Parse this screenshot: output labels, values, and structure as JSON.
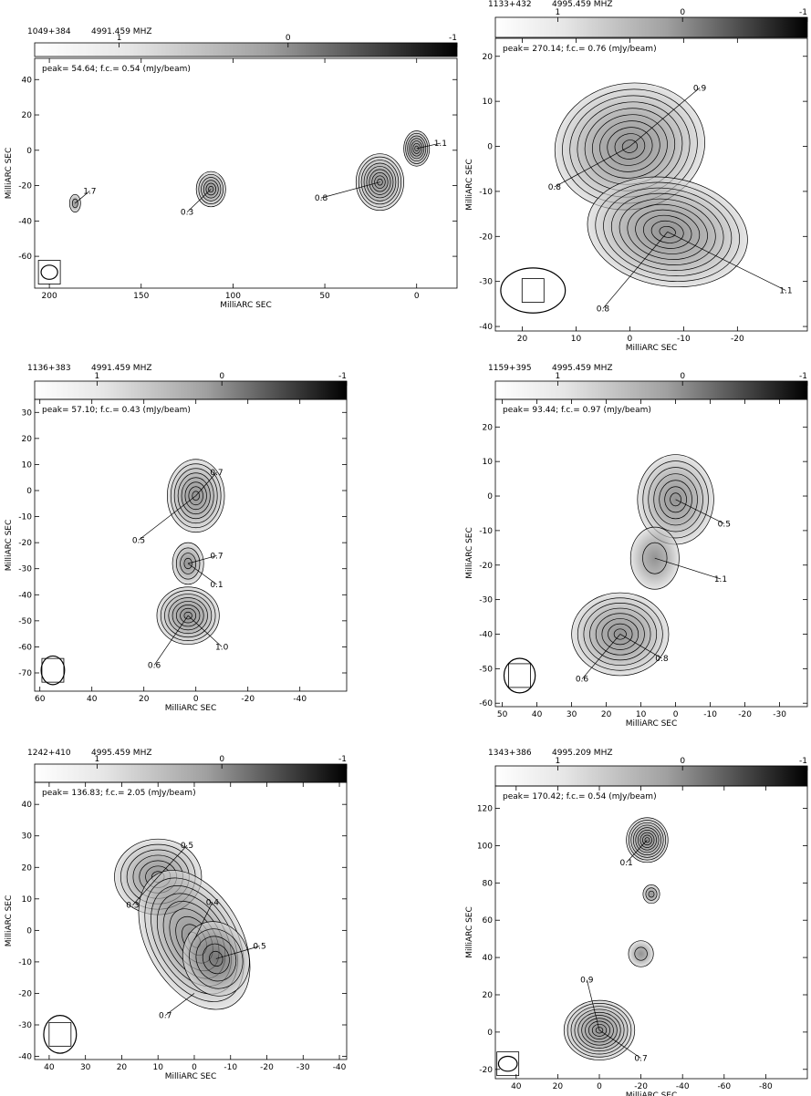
{
  "figure": {
    "colorbar_ticks": [
      "1",
      "0",
      "-1"
    ],
    "axis_label": "MilliARC SEC"
  },
  "chart_data": [
    {
      "type": "contour",
      "source": "1049+384",
      "frequency": "4991.459 MHZ",
      "info": "peak= 54.64;   f.c.= 0.54  (mJy/beam)",
      "xlabel": "MilliARC SEC",
      "ylabel": "MilliARC SEC",
      "x_ticks": [
        200,
        150,
        100,
        50,
        0
      ],
      "y_ticks": [
        40,
        20,
        0,
        -20,
        -40,
        -60
      ],
      "xlim": [
        208,
        -22
      ],
      "ylim": [
        -78,
        52
      ],
      "components": [
        {
          "x": 0,
          "y": 1,
          "rx": 7,
          "ry": 10,
          "n": 7,
          "angle": 0
        },
        {
          "x": 20,
          "y": -18,
          "rx": 13,
          "ry": 16,
          "n": 9,
          "angle": 0
        },
        {
          "x": 112,
          "y": -22,
          "rx": 8,
          "ry": 10,
          "n": 6,
          "angle": 0
        },
        {
          "x": 186,
          "y": -30,
          "rx": 3,
          "ry": 5,
          "n": 2,
          "angle": 0
        }
      ],
      "labels": [
        {
          "text": "1.1",
          "x": -13,
          "y": 4,
          "tx": 0,
          "ty": 1
        },
        {
          "text": "0.8",
          "x": 52,
          "y": -27,
          "tx": 20,
          "ty": -18
        },
        {
          "text": "0.3",
          "x": 125,
          "y": -35,
          "tx": 112,
          "ty": -22
        },
        {
          "text": "1.7",
          "x": 178,
          "y": -23,
          "tx": 186,
          "ty": -30
        }
      ],
      "beam": {
        "x": 200,
        "y": -69,
        "rx": 4.5,
        "ry": 4,
        "angle": 0
      }
    },
    {
      "type": "contour",
      "source": "1133+432",
      "frequency": "4995.459 MHZ",
      "info": "peak= 270.14;   f.c.= 0.76  (mJy/beam)",
      "xlabel": "MilliARC SEC",
      "ylabel": "MilliARC SEC",
      "x_ticks": [
        20,
        10,
        0,
        -10,
        -20
      ],
      "y_ticks": [
        20,
        10,
        0,
        -10,
        -20,
        -30,
        -40
      ],
      "xlim": [
        25,
        -33
      ],
      "ylim": [
        -41,
        24
      ],
      "components": [
        {
          "x": 0,
          "y": 0,
          "rx": 14,
          "ry": 14,
          "n": 10,
          "angle": -10
        },
        {
          "x": -7,
          "y": -19,
          "rx": 15,
          "ry": 12,
          "n": 10,
          "angle": 10
        }
      ],
      "labels": [
        {
          "text": "0.9",
          "x": -13,
          "y": 13,
          "tx": 0,
          "ty": 0
        },
        {
          "text": "0.8",
          "x": 14,
          "y": -9,
          "tx": 0,
          "ty": 0
        },
        {
          "text": "0.8",
          "x": 5,
          "y": -36,
          "tx": -7,
          "ty": -19
        },
        {
          "text": "1.1",
          "x": -29,
          "y": -32,
          "tx": -7,
          "ty": -19
        }
      ],
      "beam": {
        "x": 18,
        "y": -32,
        "rx": 6,
        "ry": 5,
        "angle": 0
      }
    },
    {
      "type": "contour",
      "source": "1136+383",
      "frequency": "4991.459 MHZ",
      "info": "peak= 57.10;   f.c.= 0.43  (mJy/beam)",
      "xlabel": "MilliARC SEC",
      "ylabel": "MilliARC SEC",
      "x_ticks": [
        60,
        40,
        20,
        0,
        -20,
        -40
      ],
      "y_ticks": [
        30,
        20,
        10,
        0,
        -10,
        -20,
        -30,
        -40,
        -50,
        -60,
        -70
      ],
      "xlim": [
        62,
        -58
      ],
      "ylim": [
        -77,
        35
      ],
      "components": [
        {
          "x": 0,
          "y": -2,
          "rx": 11,
          "ry": 14,
          "n": 8,
          "angle": 0
        },
        {
          "x": 3,
          "y": -28,
          "rx": 6,
          "ry": 8,
          "n": 4,
          "angle": 0
        },
        {
          "x": 3,
          "y": -48,
          "rx": 12,
          "ry": 11,
          "n": 8,
          "angle": 0
        }
      ],
      "labels": [
        {
          "text": "0.7",
          "x": -8,
          "y": 7,
          "tx": 0,
          "ty": -2
        },
        {
          "text": "0.5",
          "x": 22,
          "y": -19,
          "tx": 0,
          "ty": -2
        },
        {
          "text": "0.7",
          "x": -8,
          "y": -25,
          "tx": 3,
          "ty": -28
        },
        {
          "text": "0.1",
          "x": -8,
          "y": -36,
          "tx": 3,
          "ty": -28
        },
        {
          "text": "1.0",
          "x": -10,
          "y": -60,
          "tx": 3,
          "ty": -48
        },
        {
          "text": "0.6",
          "x": 16,
          "y": -67,
          "tx": 3,
          "ty": -48
        }
      ],
      "beam": {
        "x": 55,
        "y": -69,
        "rx": 4.5,
        "ry": 5.5,
        "angle": 0
      }
    },
    {
      "type": "contour",
      "source": "1159+395",
      "frequency": "4995.459 MHZ",
      "info": "peak= 93.44;   f.c.= 0.97  (mJy/beam)",
      "xlabel": "MilliARC SEC",
      "ylabel": "MilliARC SEC",
      "x_ticks": [
        50,
        40,
        30,
        20,
        10,
        0,
        -10,
        -20,
        -30
      ],
      "y_ticks": [
        20,
        10,
        0,
        -10,
        -20,
        -30,
        -40,
        -50,
        -60
      ],
      "xlim": [
        52,
        -38
      ],
      "ylim": [
        -61,
        28
      ],
      "components": [
        {
          "x": 0,
          "y": -1,
          "rx": 11,
          "ry": 13,
          "n": 7,
          "angle": 0
        },
        {
          "x": 6,
          "y": -18,
          "rx": 7,
          "ry": 9,
          "n": 2,
          "angle": 0
        },
        {
          "x": 16,
          "y": -40,
          "rx": 14,
          "ry": 12,
          "n": 8,
          "angle": 0
        }
      ],
      "labels": [
        {
          "text": "0.5",
          "x": -14,
          "y": -8,
          "tx": 0,
          "ty": -1
        },
        {
          "text": "1.1",
          "x": -13,
          "y": -24,
          "tx": 6,
          "ty": -18
        },
        {
          "text": "0.8",
          "x": 4,
          "y": -47,
          "tx": 16,
          "ty": -40
        },
        {
          "text": "0.6",
          "x": 27,
          "y": -53,
          "tx": 16,
          "ty": -40
        }
      ],
      "beam": {
        "x": 45,
        "y": -52,
        "rx": 4.5,
        "ry": 5,
        "angle": 0
      }
    },
    {
      "type": "contour",
      "source": "1242+410",
      "frequency": "4995.459 MHZ",
      "info": "peak= 136.83;   f.c.= 2.05  (mJy/beam)",
      "xlabel": "MilliARC SEC",
      "ylabel": "MilliARC SEC",
      "x_ticks": [
        40,
        30,
        20,
        10,
        0,
        -10,
        -20,
        -30,
        -40
      ],
      "y_ticks": [
        40,
        30,
        20,
        10,
        0,
        -10,
        -20,
        -30,
        -40
      ],
      "xlim": [
        44,
        -42
      ],
      "ylim": [
        -41,
        47
      ],
      "components": [
        {
          "x": 10,
          "y": 17,
          "rx": 12,
          "ry": 12,
          "n": 7,
          "angle": 0
        },
        {
          "x": 0,
          "y": -3,
          "rx": 13,
          "ry": 24,
          "n": 9,
          "angle": -30
        },
        {
          "x": -6,
          "y": -9,
          "rx": 9,
          "ry": 12,
          "n": 5,
          "angle": -20
        }
      ],
      "labels": [
        {
          "text": "0.5",
          "x": 2,
          "y": 27,
          "tx": 10,
          "ty": 17
        },
        {
          "text": "0.3",
          "x": 17,
          "y": 8,
          "tx": 10,
          "ty": 17
        },
        {
          "text": "0.4",
          "x": -5,
          "y": 9,
          "tx": 0,
          "ty": -3
        },
        {
          "text": "0.5",
          "x": -18,
          "y": -5,
          "tx": -6,
          "ty": -9
        },
        {
          "text": "0.7",
          "x": 8,
          "y": -27,
          "tx": 0,
          "ty": -20
        }
      ],
      "beam": {
        "x": 37,
        "y": -33,
        "rx": 4.5,
        "ry": 6,
        "angle": 0
      }
    },
    {
      "type": "contour",
      "source": "1343+386",
      "frequency": "4995.209 MHZ",
      "info": "peak= 170.42;   f.c.= 0.54  (mJy/beam)",
      "xlabel": "MilliARC SEC",
      "ylabel": "MilliARC SEC",
      "x_ticks": [
        40,
        20,
        0,
        -20,
        -40,
        -60,
        -80
      ],
      "y_ticks": [
        120,
        100,
        80,
        60,
        40,
        20,
        0,
        -20
      ],
      "xlim": [
        50,
        -100
      ],
      "ylim": [
        -25,
        132
      ],
      "components": [
        {
          "x": -23,
          "y": 103,
          "rx": 10,
          "ry": 12,
          "n": 9,
          "angle": 0
        },
        {
          "x": -25,
          "y": 74,
          "rx": 4,
          "ry": 5,
          "n": 3,
          "angle": 0
        },
        {
          "x": -20,
          "y": 42,
          "rx": 6,
          "ry": 7,
          "n": 2,
          "angle": 0
        },
        {
          "x": 0,
          "y": 1,
          "rx": 17,
          "ry": 16,
          "n": 10,
          "angle": 0
        }
      ],
      "labels": [
        {
          "text": "0.1",
          "x": -13,
          "y": 91,
          "tx": -23,
          "ty": 103
        },
        {
          "text": "0.9",
          "x": 6,
          "y": 28,
          "tx": 0,
          "ty": 1
        },
        {
          "text": "0.7",
          "x": -20,
          "y": -14,
          "tx": 0,
          "ty": 1
        }
      ],
      "beam": {
        "x": 44,
        "y": -17,
        "rx": 4.5,
        "ry": 4,
        "angle": 0
      }
    }
  ]
}
